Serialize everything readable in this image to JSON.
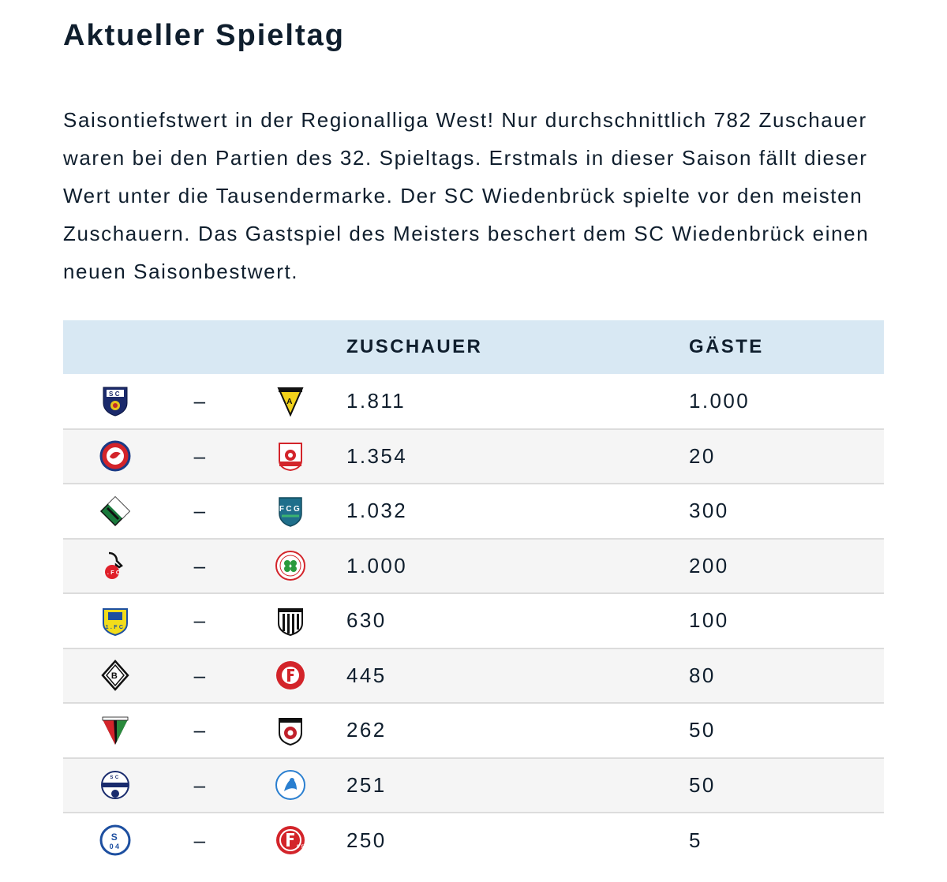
{
  "title": "Aktueller Spieltag",
  "intro": "Saisontiefstwert in der Regionalliga West! Nur durchschnittlich 782 Zuschauer waren bei den Partien des 32. Spieltags. Erstmals in dieser Saison fällt dieser Wert unter die Tausendermarke. Der SC Wiedenbrück spielte vor den meisten Zuschauern. Das Gastspiel des Meisters beschert dem SC Wiedenbrück einen neuen Saisonbestwert.",
  "table": {
    "headers": {
      "home": "",
      "sep": "",
      "away": "",
      "zuschauer": "ZUSCHAUER",
      "gaeste": "GÄSTE"
    },
    "rows": [
      {
        "home_icon": "sc-wiedenbrueck-crest-icon",
        "sep": "–",
        "away_icon": "alemannia-aachen-crest-icon",
        "zuschauer": "1.811",
        "gaeste": "1.000"
      },
      {
        "home_icon": "wuppertaler-sv-crest-icon",
        "sep": "–",
        "away_icon": "rot-weiss-ahlen-crest-icon",
        "zuschauer": "1.354",
        "gaeste": "20"
      },
      {
        "home_icon": "sv-schermbeck-crest-icon",
        "sep": "–",
        "away_icon": "fc-guetersloh-crest-icon",
        "zuschauer": "1.032",
        "gaeste": "300"
      },
      {
        "home_icon": "1-fc-koeln-crest-icon",
        "sep": "–",
        "away_icon": "rot-weiss-oberhausen-crest-icon",
        "zuschauer": "1.000",
        "gaeste": "200"
      },
      {
        "home_icon": "1-fc-bocholt-yellow-crest-icon",
        "sep": "–",
        "away_icon": "1-fc-bocholt-striped-crest-icon",
        "zuschauer": "630",
        "gaeste": "100"
      },
      {
        "home_icon": "borussia-moenchengladbach-crest-icon",
        "sep": "–",
        "away_icon": "fortuna-koeln-crest-icon",
        "zuschauer": "445",
        "gaeste": "80"
      },
      {
        "home_icon": "fc-wegberg-crest-icon",
        "sep": "–",
        "away_icon": "sv-lippstadt-crest-icon",
        "zuschauer": "262",
        "gaeste": "50"
      },
      {
        "home_icon": "sc-paderborn-crest-icon",
        "sep": "–",
        "away_icon": "sportfreunde-lotte-crest-icon",
        "zuschauer": "251",
        "gaeste": "50"
      },
      {
        "home_icon": "schalke-04-crest-icon",
        "sep": "–",
        "away_icon": "fortuna-duesseldorf-crest-icon",
        "zuschauer": "250",
        "gaeste": "5"
      }
    ]
  },
  "colors": {
    "header_bg": "#d8e8f3",
    "text": "#0f1e2d",
    "row_border": "#dcdcdc"
  }
}
